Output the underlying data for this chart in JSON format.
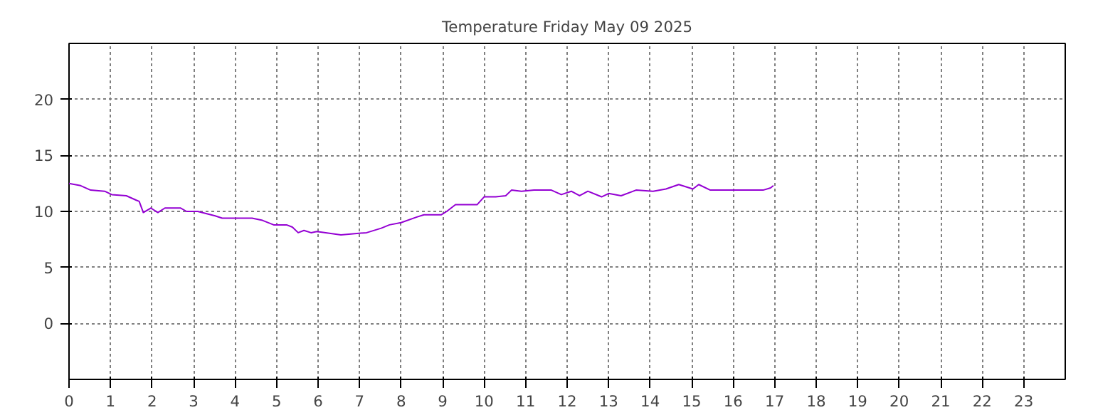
{
  "chart_data": {
    "type": "line",
    "title": "Temperature Friday May 09 2025",
    "x": [
      0,
      0.28,
      0.52,
      0.86,
      1.03,
      1.38,
      1.62,
      1.69,
      1.79,
      1.97,
      2.14,
      2.31,
      2.69,
      2.83,
      3.1,
      3.52,
      3.69,
      4.41,
      4.66,
      4.93,
      5.24,
      5.38,
      5.52,
      5.66,
      5.83,
      5.97,
      6.55,
      7.17,
      7.52,
      7.72,
      8.0,
      8.38,
      8.55,
      8.97,
      9.1,
      9.31,
      9.83,
      10.0,
      10.28,
      10.52,
      10.66,
      10.9,
      11.2,
      11.62,
      11.86,
      12.1,
      12.3,
      12.5,
      12.83,
      13.0,
      13.3,
      13.66,
      14.07,
      14.38,
      14.69,
      15.03,
      15.17,
      15.45,
      15.8,
      16.0,
      16.72,
      16.9,
      16.97
    ],
    "series": [
      {
        "color": "#9400d3",
        "values": [
          12.5,
          12.3,
          11.9,
          11.8,
          11.5,
          11.4,
          11.0,
          10.9,
          9.9,
          10.3,
          9.9,
          10.3,
          10.3,
          10.0,
          10.0,
          9.6,
          9.4,
          9.4,
          9.2,
          8.8,
          8.8,
          8.6,
          8.1,
          8.3,
          8.1,
          8.2,
          7.9,
          8.1,
          8.5,
          8.8,
          9.0,
          9.5,
          9.7,
          9.7,
          10.0,
          10.6,
          10.6,
          11.3,
          11.3,
          11.4,
          11.9,
          11.8,
          11.9,
          11.9,
          11.5,
          11.8,
          11.4,
          11.8,
          11.3,
          11.6,
          11.4,
          11.9,
          11.8,
          12.0,
          12.4,
          12.0,
          12.4,
          11.9,
          11.9,
          11.9,
          11.9,
          12.1,
          12.3
        ]
      }
    ],
    "xlim": [
      0,
      24
    ],
    "xticks": [
      0,
      1,
      2,
      3,
      4,
      5,
      6,
      7,
      8,
      9,
      10,
      11,
      12,
      13,
      14,
      15,
      16,
      17,
      18,
      19,
      20,
      21,
      22,
      23
    ],
    "ylim": [
      -5,
      25
    ],
    "yticks": [
      0,
      5,
      10,
      15,
      20
    ],
    "grid": true,
    "marker": "none",
    "line_style": "solid"
  }
}
